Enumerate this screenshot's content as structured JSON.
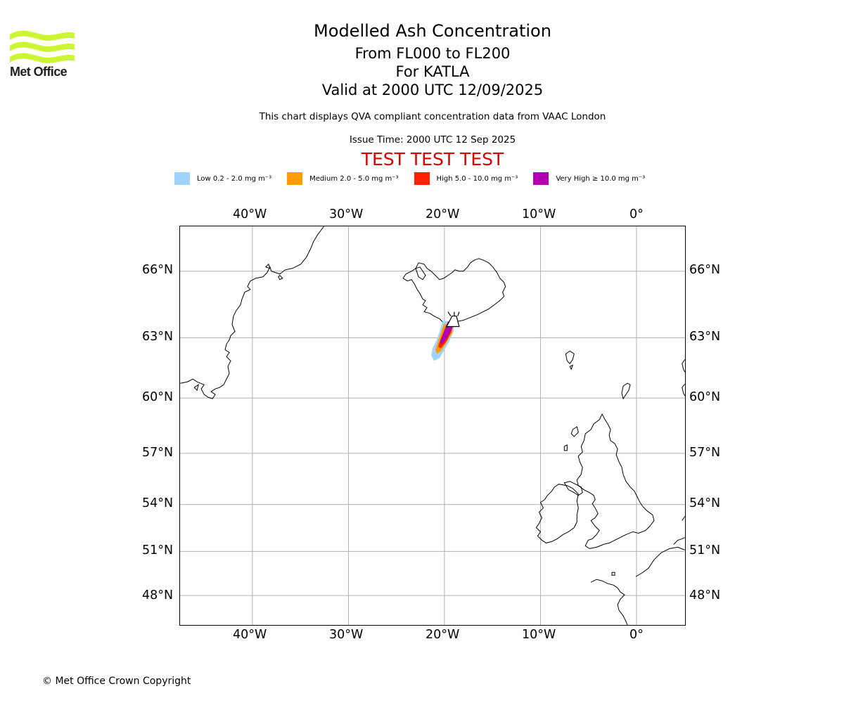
{
  "brand": {
    "name": "Met Office",
    "logo_color": "#ccf533",
    "text_color": "#231f20"
  },
  "title": {
    "line1": "Modelled Ash Concentration",
    "line2": "From FL000 to FL200",
    "line3": "For KATLA",
    "line4": "Valid at 2000 UTC 12/09/2025"
  },
  "subtitle": "This chart displays QVA compliant concentration data from VAAC London",
  "issue_time": "Issue Time: 2000 UTC 12 Sep 2025",
  "test_banner": {
    "text": "TEST TEST TEST",
    "color": "#d80000"
  },
  "legend": [
    {
      "label": "Low 0.2 - 2.0 mg m⁻³",
      "color": "#a0d4ff"
    },
    {
      "label": "Medium 2.0 - 5.0 mg m⁻³",
      "color": "#ff9c00"
    },
    {
      "label": "High 5.0 - 10.0 mg m⁻³",
      "color": "#ff2200"
    },
    {
      "label": "Very High ≥ 10.0 mg m⁻³",
      "color": "#b000b0"
    }
  ],
  "map": {
    "lon_labels": [
      "40°W",
      "30°W",
      "20°W",
      "10°W",
      "0°"
    ],
    "lat_labels": [
      "66°N",
      "63°N",
      "60°N",
      "57°N",
      "54°N",
      "51°N",
      "48°N"
    ],
    "volcano": {
      "name": "KATLA",
      "icon": "volcano-icon"
    },
    "grid": true
  },
  "copyright": "© Met Office Crown Copyright"
}
